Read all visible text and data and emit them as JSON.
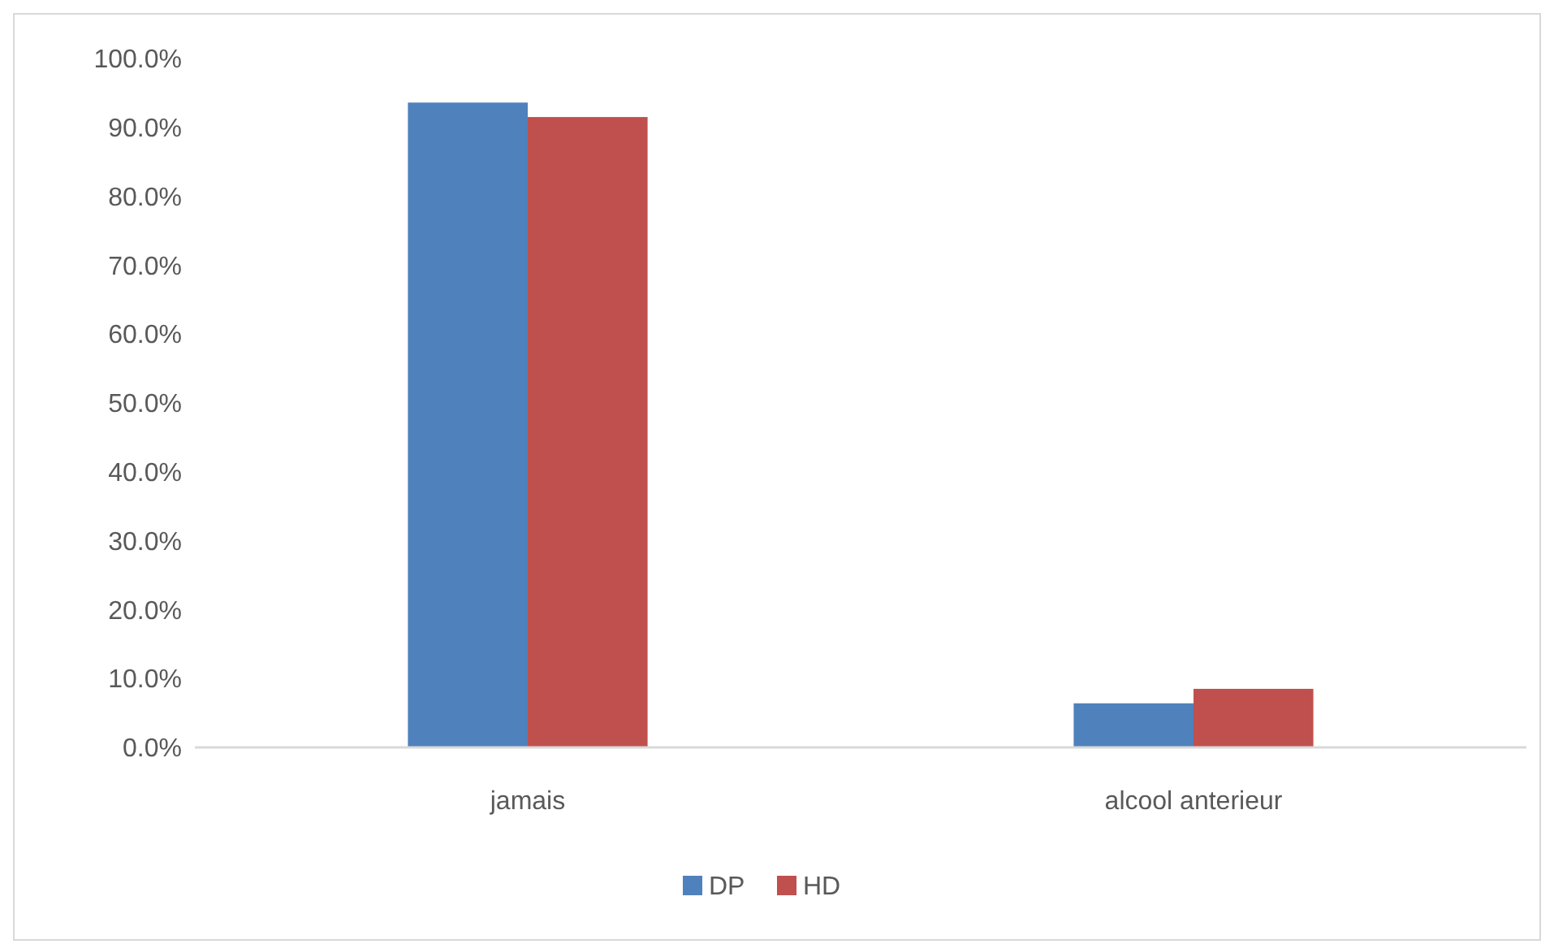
{
  "chart_data": {
    "type": "bar",
    "categories": [
      "jamais",
      "alcool anterieur"
    ],
    "series": [
      {
        "name": "DP",
        "color": "#4f81bd",
        "values": [
          93.6,
          6.4
        ]
      },
      {
        "name": "HD",
        "color": "#c0504d",
        "values": [
          91.5,
          8.5
        ]
      }
    ],
    "ylim": [
      0,
      100
    ],
    "yticks": [
      {
        "value": 0,
        "label": "0.0%"
      },
      {
        "value": 10,
        "label": "10.0%"
      },
      {
        "value": 20,
        "label": "20.0%"
      },
      {
        "value": 30,
        "label": "30.0%"
      },
      {
        "value": 40,
        "label": "40.0%"
      },
      {
        "value": 50,
        "label": "50.0%"
      },
      {
        "value": 60,
        "label": "60.0%"
      },
      {
        "value": 70,
        "label": "70.0%"
      },
      {
        "value": 80,
        "label": "80.0%"
      },
      {
        "value": 90,
        "label": "90.0%"
      },
      {
        "value": 100,
        "label": "100.0%"
      }
    ],
    "grid": false,
    "legend": "bottom"
  }
}
